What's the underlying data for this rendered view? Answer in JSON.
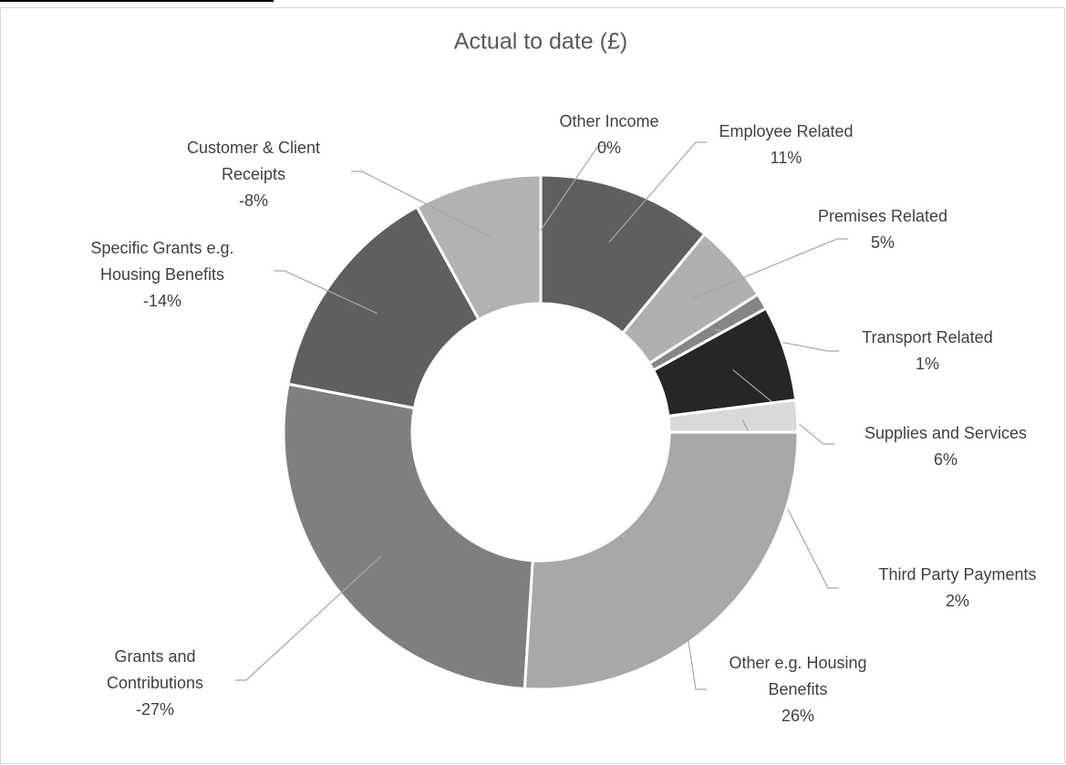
{
  "chart_data": {
    "type": "donut",
    "title": "Actual to date (£)",
    "categories": [
      "Employee Related",
      "Premises Related",
      "Transport Related",
      "Supplies and Services",
      "Third Party Payments",
      "Other e.g. Housing Benefits",
      "Grants and Contributions",
      "Specific Grants e.g. Housing Benefits",
      "Customer & Client Receipts",
      "Other Income"
    ],
    "values": [
      11,
      5,
      1,
      6,
      2,
      26,
      -27,
      -14,
      -8,
      0
    ],
    "value_labels": [
      "11%",
      "5%",
      "1%",
      "6%",
      "2%",
      "26%",
      "-27%",
      "-14%",
      "-8%",
      "0%"
    ],
    "colors": [
      "#5f5f5f",
      "#b0b0b0",
      "#858585",
      "#262626",
      "#d9d9d9",
      "#a8a8a8",
      "#7f7f7f",
      "#5f5f5f",
      "#b2b2b2",
      "#d0d0d0"
    ]
  }
}
